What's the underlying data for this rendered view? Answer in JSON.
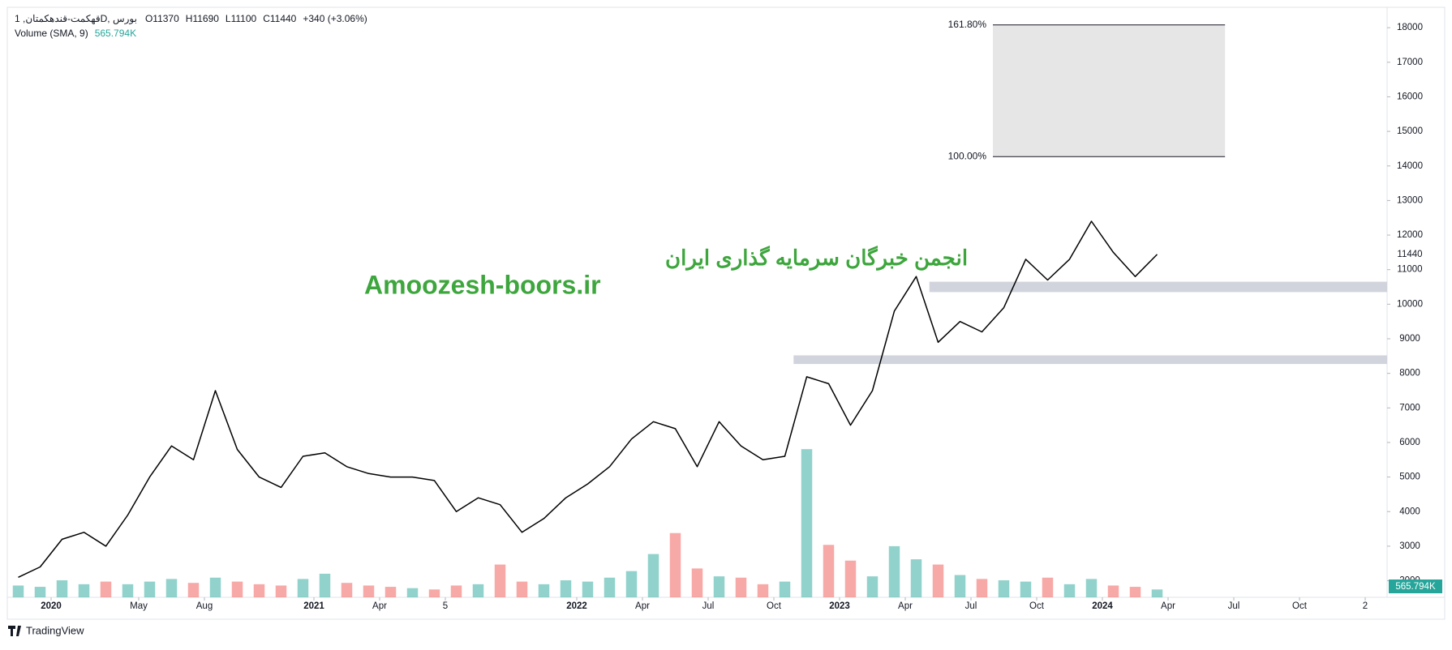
{
  "header": {
    "symbol": "قهکمت-قندهکمتان, 1D, بورس",
    "ohlc": [
      {
        "label": "O",
        "value": 11370
      },
      {
        "label": "H",
        "value": 11690
      },
      {
        "label": "L",
        "value": 11100
      },
      {
        "label": "C",
        "value": 11440
      }
    ],
    "change": "+340 (+3.06%)",
    "volume_indicator": "Volume (SMA, 9)",
    "volume_value": "565.794K"
  },
  "watermark": {
    "line1": "انجمن خبرگان سرمایه گذاری ایران",
    "line2": "Amoozesh-boors.ir",
    "color": "#3da63d"
  },
  "footer": {
    "brand": "TradingView"
  },
  "chart_data": {
    "type": "line",
    "color": "#000000",
    "categories": [
      null,
      null,
      "2020",
      null,
      null,
      null,
      "May",
      null,
      null,
      "Aug",
      null,
      null,
      null,
      null,
      "2021",
      null,
      null,
      "Apr",
      null,
      null,
      "5",
      null,
      null,
      null,
      null,
      null,
      "2022",
      null,
      null,
      "Apr",
      null,
      null,
      "Jul",
      null,
      null,
      "Oct",
      null,
      null,
      "2023",
      null,
      null,
      "Apr",
      null,
      null,
      "Jul",
      null,
      null,
      "Oct",
      null,
      null,
      "2024",
      null,
      null,
      "Apr",
      null,
      null,
      "Jul",
      null,
      null,
      "Oct",
      null,
      null,
      "2"
    ],
    "values": [
      2100,
      2400,
      3200,
      3400,
      3000,
      3900,
      5000,
      5900,
      5500,
      7500,
      5800,
      5000,
      4700,
      5600,
      5700,
      5300,
      5100,
      5000,
      5000,
      4900,
      4000,
      4400,
      4200,
      3400,
      3800,
      4400,
      4800,
      5300,
      6100,
      6600,
      6400,
      5300,
      6600,
      5900,
      5500,
      5600,
      7900,
      7700,
      6500,
      7500,
      9800,
      10800,
      8900,
      9500,
      9200,
      9900,
      11300,
      10700,
      11300,
      12400,
      11500,
      10800,
      11440,
      null,
      null,
      null,
      null,
      null,
      null,
      null,
      null,
      null,
      null
    ],
    "volume": {
      "type": "bar",
      "axis": "y2",
      "up_color": "#26a69a",
      "down_color": "#ef5350",
      "values": [
        900,
        800,
        1300,
        1000,
        1200,
        1000,
        1200,
        1400,
        1100,
        1500,
        1200,
        1000,
        900,
        1400,
        1800,
        1100,
        900,
        800,
        700,
        600,
        900,
        1000,
        2500,
        1200,
        1000,
        1300,
        1200,
        1500,
        2000,
        3300,
        4900,
        2200,
        1600,
        1500,
        1000,
        1200,
        11300,
        4000,
        2800,
        1600,
        3900,
        2900,
        2500,
        1700,
        1400,
        1300,
        1200,
        1500,
        1000,
        1400,
        900,
        800,
        600,
        null,
        null,
        null,
        null,
        null,
        null,
        null,
        null,
        null,
        null
      ]
    },
    "ylim": [
      1520,
      18590
    ],
    "yticks": [
      2000,
      3000,
      4000,
      5000,
      6000,
      7000,
      8000,
      9000,
      10000,
      11000,
      12000,
      13000,
      14000,
      15000,
      16000,
      17000,
      18000
    ],
    "y2lim": [
      0,
      45000
    ],
    "last_price": 11440,
    "fib_levels": [
      {
        "label": "161.80%",
        "value": 18080
      },
      {
        "label": "100.00%",
        "value": 14270
      }
    ],
    "fib_fill": "#e6e6e6",
    "zones": [
      {
        "low": 10350,
        "high": 10650
      },
      {
        "low": 8270,
        "high": 8520
      }
    ],
    "zone_color": "#d1d4dc"
  }
}
